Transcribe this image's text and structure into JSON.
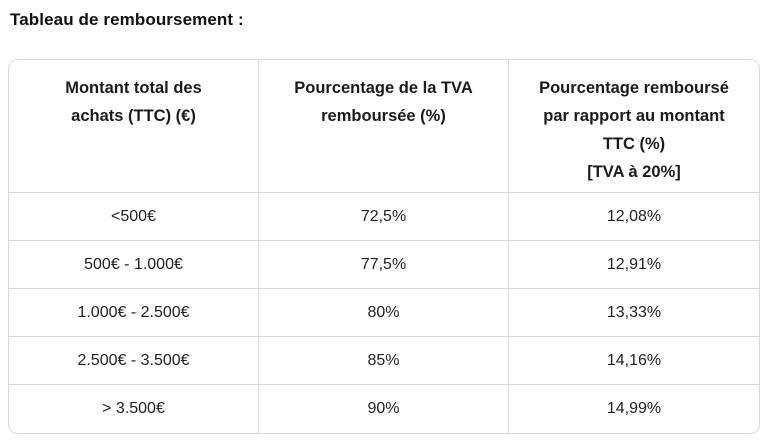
{
  "page": {
    "title": "Tableau de remboursement :"
  },
  "table": {
    "columns": [
      {
        "id": "montant",
        "label": "Montant total des achats (TTC) (€)",
        "lines": [
          "Montant total des",
          "achats (TTC) (€)"
        ]
      },
      {
        "id": "tva",
        "label": "Pourcentage de la TVA remboursée (%)",
        "lines": [
          "Pourcentage de la TVA",
          "remboursée (%)"
        ]
      },
      {
        "id": "rembourse",
        "label": "Pourcentage remboursé par rapport au montant TTC (%) [TVA à 20%]",
        "lines": [
          "Pourcentage remboursé",
          "par rapport au montant",
          "TTC (%)",
          "[TVA à 20%]"
        ]
      }
    ],
    "rows": [
      {
        "montant": "<500€",
        "tva": "72,5%",
        "rembourse": "12,08%"
      },
      {
        "montant": "500€ - 1.000€",
        "tva": "77,5%",
        "rembourse": "12,91%"
      },
      {
        "montant": "1.000€ - 2.500€",
        "tva": "80%",
        "rembourse": "13,33%"
      },
      {
        "montant": "2.500€ - 3.500€",
        "tva": "85%",
        "rembourse": "14,16%"
      },
      {
        "montant": "> 3.500€",
        "tva": "90%",
        "rembourse": "14,99%"
      }
    ],
    "colors": {
      "border": "#d8d8d8",
      "text": "#1d1d1f",
      "background": "#ffffff"
    }
  }
}
